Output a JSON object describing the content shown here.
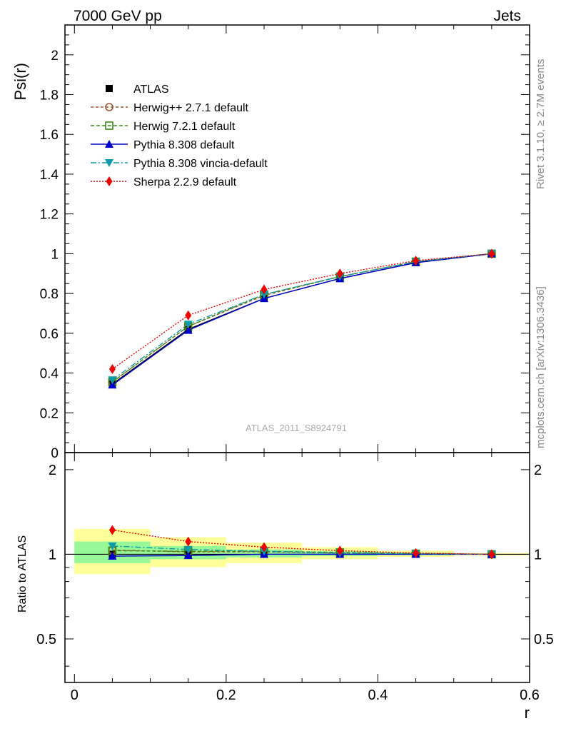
{
  "header": {
    "left_title": "7000 GeV pp",
    "right_title": "Jets"
  },
  "side_labels": {
    "rivet": "Rivet 3.1.10, ≥ 2.7M events",
    "source": "mcplots.cern.ch [arXiv:1306.3436]"
  },
  "watermark": "ATLAS_2011_S8924791",
  "colors": {
    "ATLAS": "#000000",
    "Herwig++ 2.7.1 default": "#a0522d",
    "Herwig 7.2.1 default": "#3a8a10",
    "Pythia 8.308 default": "#0000cc",
    "Pythia 8.308 vincia-default": "#0d9aa8",
    "Sherpa 2.2.9 default": "#ee0000",
    "band_inner": "#98f898",
    "band_outer": "#ffff99"
  },
  "chart_data": [
    {
      "type": "line",
      "panel": "main",
      "ylabel": "Psi(r)",
      "xlim": [
        -0.0125,
        0.6
      ],
      "ylim": [
        0,
        2.15
      ],
      "yticks": [
        0,
        0.2,
        0.4,
        0.6,
        0.8,
        1,
        1.2,
        1.4,
        1.6,
        1.8,
        2
      ],
      "ytick_labels": [
        "0",
        "0.2",
        "0.4",
        "0.6",
        "0.8",
        "1",
        "1.2",
        "1.4",
        "1.6",
        "1.8",
        "2"
      ],
      "x": [
        0.05,
        0.15,
        0.25,
        0.35,
        0.45,
        0.55
      ],
      "legend_position": "top-left",
      "series": [
        {
          "name": "ATLAS",
          "values": [
            0.345,
            0.62,
            0.775,
            0.875,
            0.955,
            1.0
          ],
          "marker": "square",
          "dash": "none"
        },
        {
          "name": "Herwig++ 2.7.1 default",
          "values": [
            0.355,
            0.635,
            0.79,
            0.885,
            0.96,
            1.0
          ],
          "marker": "circle-open",
          "dash": "4,3"
        },
        {
          "name": "Herwig 7.2.1 default",
          "values": [
            0.355,
            0.635,
            0.795,
            0.885,
            0.96,
            1.0
          ],
          "marker": "square-open",
          "dash": "5,3"
        },
        {
          "name": "Pythia 8.308 default",
          "values": [
            0.34,
            0.615,
            0.775,
            0.875,
            0.955,
            1.0
          ],
          "marker": "triangle-up",
          "dash": "none"
        },
        {
          "name": "Pythia 8.308 vincia-default",
          "values": [
            0.365,
            0.645,
            0.795,
            0.885,
            0.96,
            1.0
          ],
          "marker": "triangle-down",
          "dash": "8,3,2,3"
        },
        {
          "name": "Sherpa 2.2.9 default",
          "values": [
            0.42,
            0.69,
            0.82,
            0.9,
            0.965,
            1.0
          ],
          "marker": "diamond",
          "dash": "2,2"
        }
      ]
    },
    {
      "type": "line",
      "panel": "ratio",
      "ylabel": "Ratio to ATLAS",
      "xlabel": "r",
      "xlim": [
        -0.0125,
        0.6
      ],
      "ylim": [
        0.35,
        2.3
      ],
      "log_y": true,
      "xticks": [
        0,
        0.2,
        0.4,
        0.6
      ],
      "xtick_labels": [
        "0",
        "0.2",
        "0.4",
        "0.6"
      ],
      "yticks": [
        0.5,
        1,
        2
      ],
      "ytick_labels": [
        "0.5",
        "1",
        "2"
      ],
      "x": [
        0.05,
        0.15,
        0.25,
        0.35,
        0.45,
        0.55
      ],
      "bands": {
        "x_edges": [
          0.0,
          0.1,
          0.2,
          0.3,
          0.4,
          0.5,
          0.6
        ],
        "inner": [
          [
            0.93,
            1.11
          ],
          [
            0.96,
            1.07
          ],
          [
            0.975,
            1.04
          ],
          [
            0.985,
            1.025
          ],
          [
            0.992,
            1.012
          ],
          [
            0.998,
            1.002
          ]
        ],
        "outer": [
          [
            0.85,
            1.23
          ],
          [
            0.9,
            1.15
          ],
          [
            0.93,
            1.1
          ],
          [
            0.96,
            1.06
          ],
          [
            0.98,
            1.03
          ],
          [
            0.99,
            1.01
          ]
        ]
      },
      "series": [
        {
          "name": "Herwig++ 2.7.1 default",
          "values": [
            1.035,
            1.02,
            1.02,
            1.01,
            1.005,
            1.0
          ]
        },
        {
          "name": "Herwig 7.2.1 default",
          "values": [
            1.03,
            1.025,
            1.025,
            1.015,
            1.005,
            1.0
          ]
        },
        {
          "name": "Pythia 8.308 default",
          "values": [
            0.985,
            0.99,
            1.0,
            1.0,
            1.0,
            1.0
          ]
        },
        {
          "name": "Pythia 8.308 vincia-default",
          "values": [
            1.07,
            1.04,
            1.025,
            1.01,
            1.005,
            1.0
          ]
        },
        {
          "name": "Sherpa 2.2.9 default",
          "values": [
            1.22,
            1.11,
            1.06,
            1.03,
            1.01,
            1.0
          ]
        }
      ]
    }
  ]
}
